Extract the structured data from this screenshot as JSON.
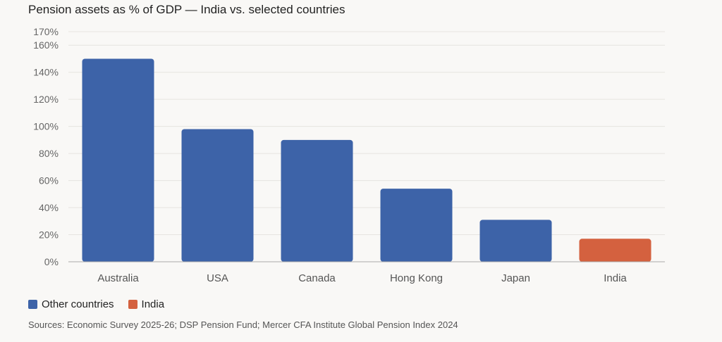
{
  "title": "Pension assets as % of GDP — India vs. selected countries",
  "colors": {
    "other": "#3d63a8",
    "india": "#d4613f",
    "grid": "#e6e4e0",
    "axis": "#aaa"
  },
  "legend": [
    {
      "label": "Other countries",
      "color": "#3d63a8"
    },
    {
      "label": "India",
      "color": "#d4613f"
    }
  ],
  "source": "Sources: Economic Survey 2025-26; DSP Pension Fund; Mercer CFA Institute Global Pension Index 2024",
  "chart_data": {
    "type": "bar",
    "title": "Pension assets as % of GDP — India vs. selected countries",
    "xlabel": "",
    "ylabel": "",
    "categories": [
      "Australia",
      "USA",
      "Canada",
      "Hong Kong",
      "Japan",
      "India"
    ],
    "series": [
      {
        "values": [
          150,
          98,
          90,
          54,
          31,
          17
        ]
      }
    ],
    "bar_series": [
      "Other countries",
      "Other countries",
      "Other countries",
      "Other countries",
      "Other countries",
      "India"
    ],
    "yticks": [
      "0%",
      "20%",
      "40%",
      "60%",
      "80%",
      "100%",
      "120%",
      "140%",
      "160%",
      "170%"
    ],
    "ytick_values": [
      0,
      20,
      40,
      60,
      80,
      100,
      120,
      140,
      160,
      170
    ],
    "ylim": [
      0,
      170
    ],
    "grid": true,
    "legend_position": "bottom-left"
  }
}
